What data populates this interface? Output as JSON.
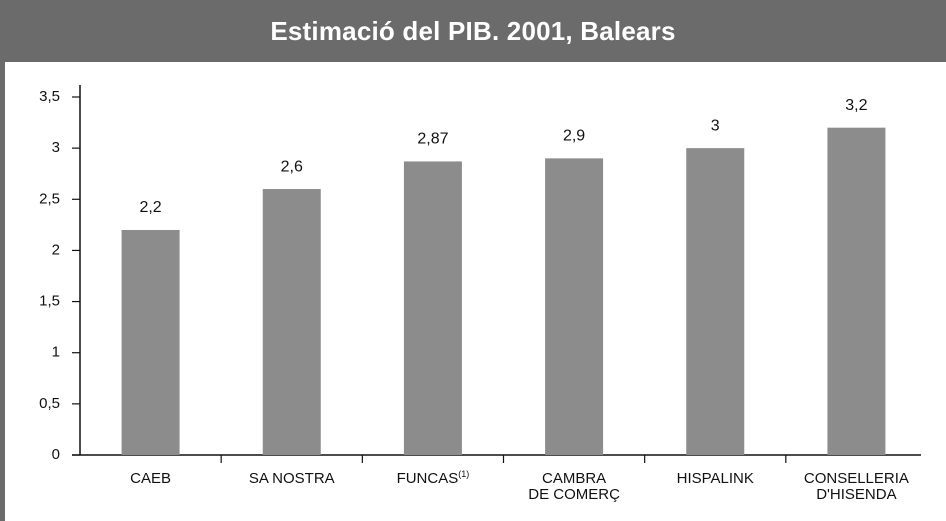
{
  "chart_data": {
    "type": "bar",
    "title": "Estimació del PIB. 2001, Balears",
    "categories": [
      "CAEB",
      "SA NOSTRA",
      "FUNCAS",
      "CAMBRA\nDE COMERÇ",
      "HISPALINK",
      "CONSELLERIA\nD'HISENDA"
    ],
    "category_superscripts": [
      null,
      null,
      "(1)",
      null,
      null,
      null
    ],
    "values": [
      2.2,
      2.6,
      2.87,
      2.9,
      3,
      3.2
    ],
    "value_labels": [
      "2,2",
      "2,6",
      "2,87",
      "2,9",
      "3",
      "3,2"
    ],
    "color": "#8c8c8c",
    "ylim": [
      0,
      3.5
    ],
    "yticks": [
      0,
      {
        "value": 0.5,
        "label": "0,5"
      },
      1,
      {
        "value": 1.5,
        "label": "1,5"
      },
      2,
      {
        "value": 2.5,
        "label": "2,5"
      },
      3,
      {
        "value": 3.5,
        "label": "3,5"
      }
    ],
    "grid": false
  }
}
